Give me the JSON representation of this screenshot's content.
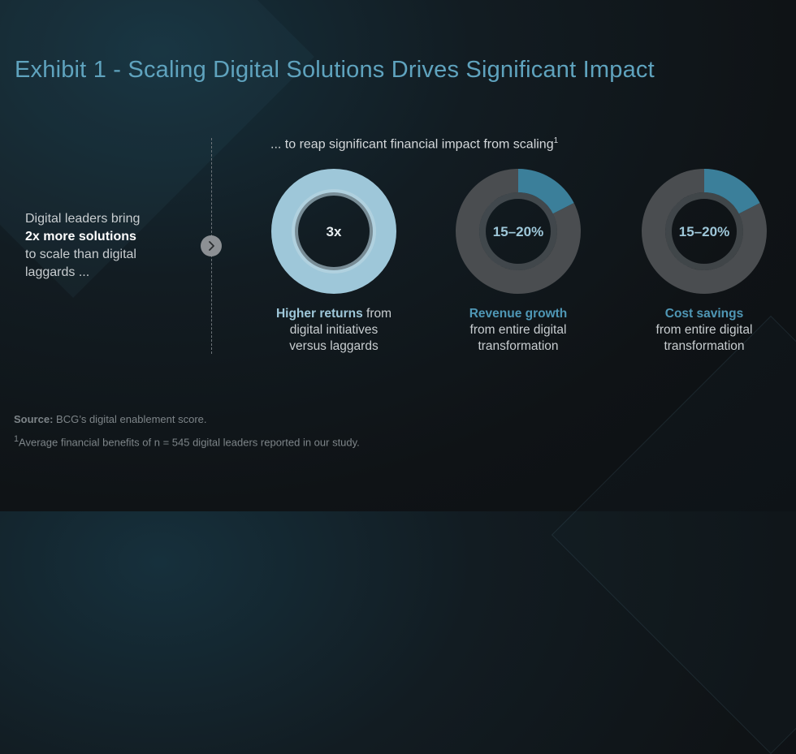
{
  "title": "Exhibit 1 - Scaling Digital Solutions Drives Significant Impact",
  "left_text": {
    "line1": "Digital leaders bring",
    "bold": "2x more solutions",
    "line3": "to scale than digital",
    "line4": "laggards ..."
  },
  "subtitle": "... to reap significant financial impact from scaling",
  "subtitle_sup": "1",
  "chart_data": {
    "type": "donut",
    "items": [
      {
        "label": "3x",
        "highlight": "Higher returns",
        "rest1": " from",
        "rest2": "digital initiatives",
        "rest3": "versus laggards",
        "fraction": 1.0,
        "highlight_color": "#9ec7d9"
      },
      {
        "label": "15–20%",
        "highlight": "Revenue growth",
        "rest1": "",
        "rest2": "from entire digital",
        "rest3": "transformation",
        "fraction": 0.175,
        "highlight_color": "#3b7f9a"
      },
      {
        "label": "15–20%",
        "highlight": "Cost savings",
        "rest1": "",
        "rest2": "from entire digital",
        "rest3": "transformation",
        "fraction": 0.175,
        "highlight_color": "#3b7f9a"
      }
    ],
    "remainder_color": "#4a4d50",
    "label_color_full": "#0f1316",
    "label_color_partial": "#9ec7d9"
  },
  "footer": {
    "source_label": "Source:",
    "source_text": " BCG’s digital enablement score.",
    "note_sup": "1",
    "note_text": "Average financial benefits of n = 545 digital leaders reported in our study."
  },
  "icons": {
    "arrow": "chevron-right-icon"
  }
}
